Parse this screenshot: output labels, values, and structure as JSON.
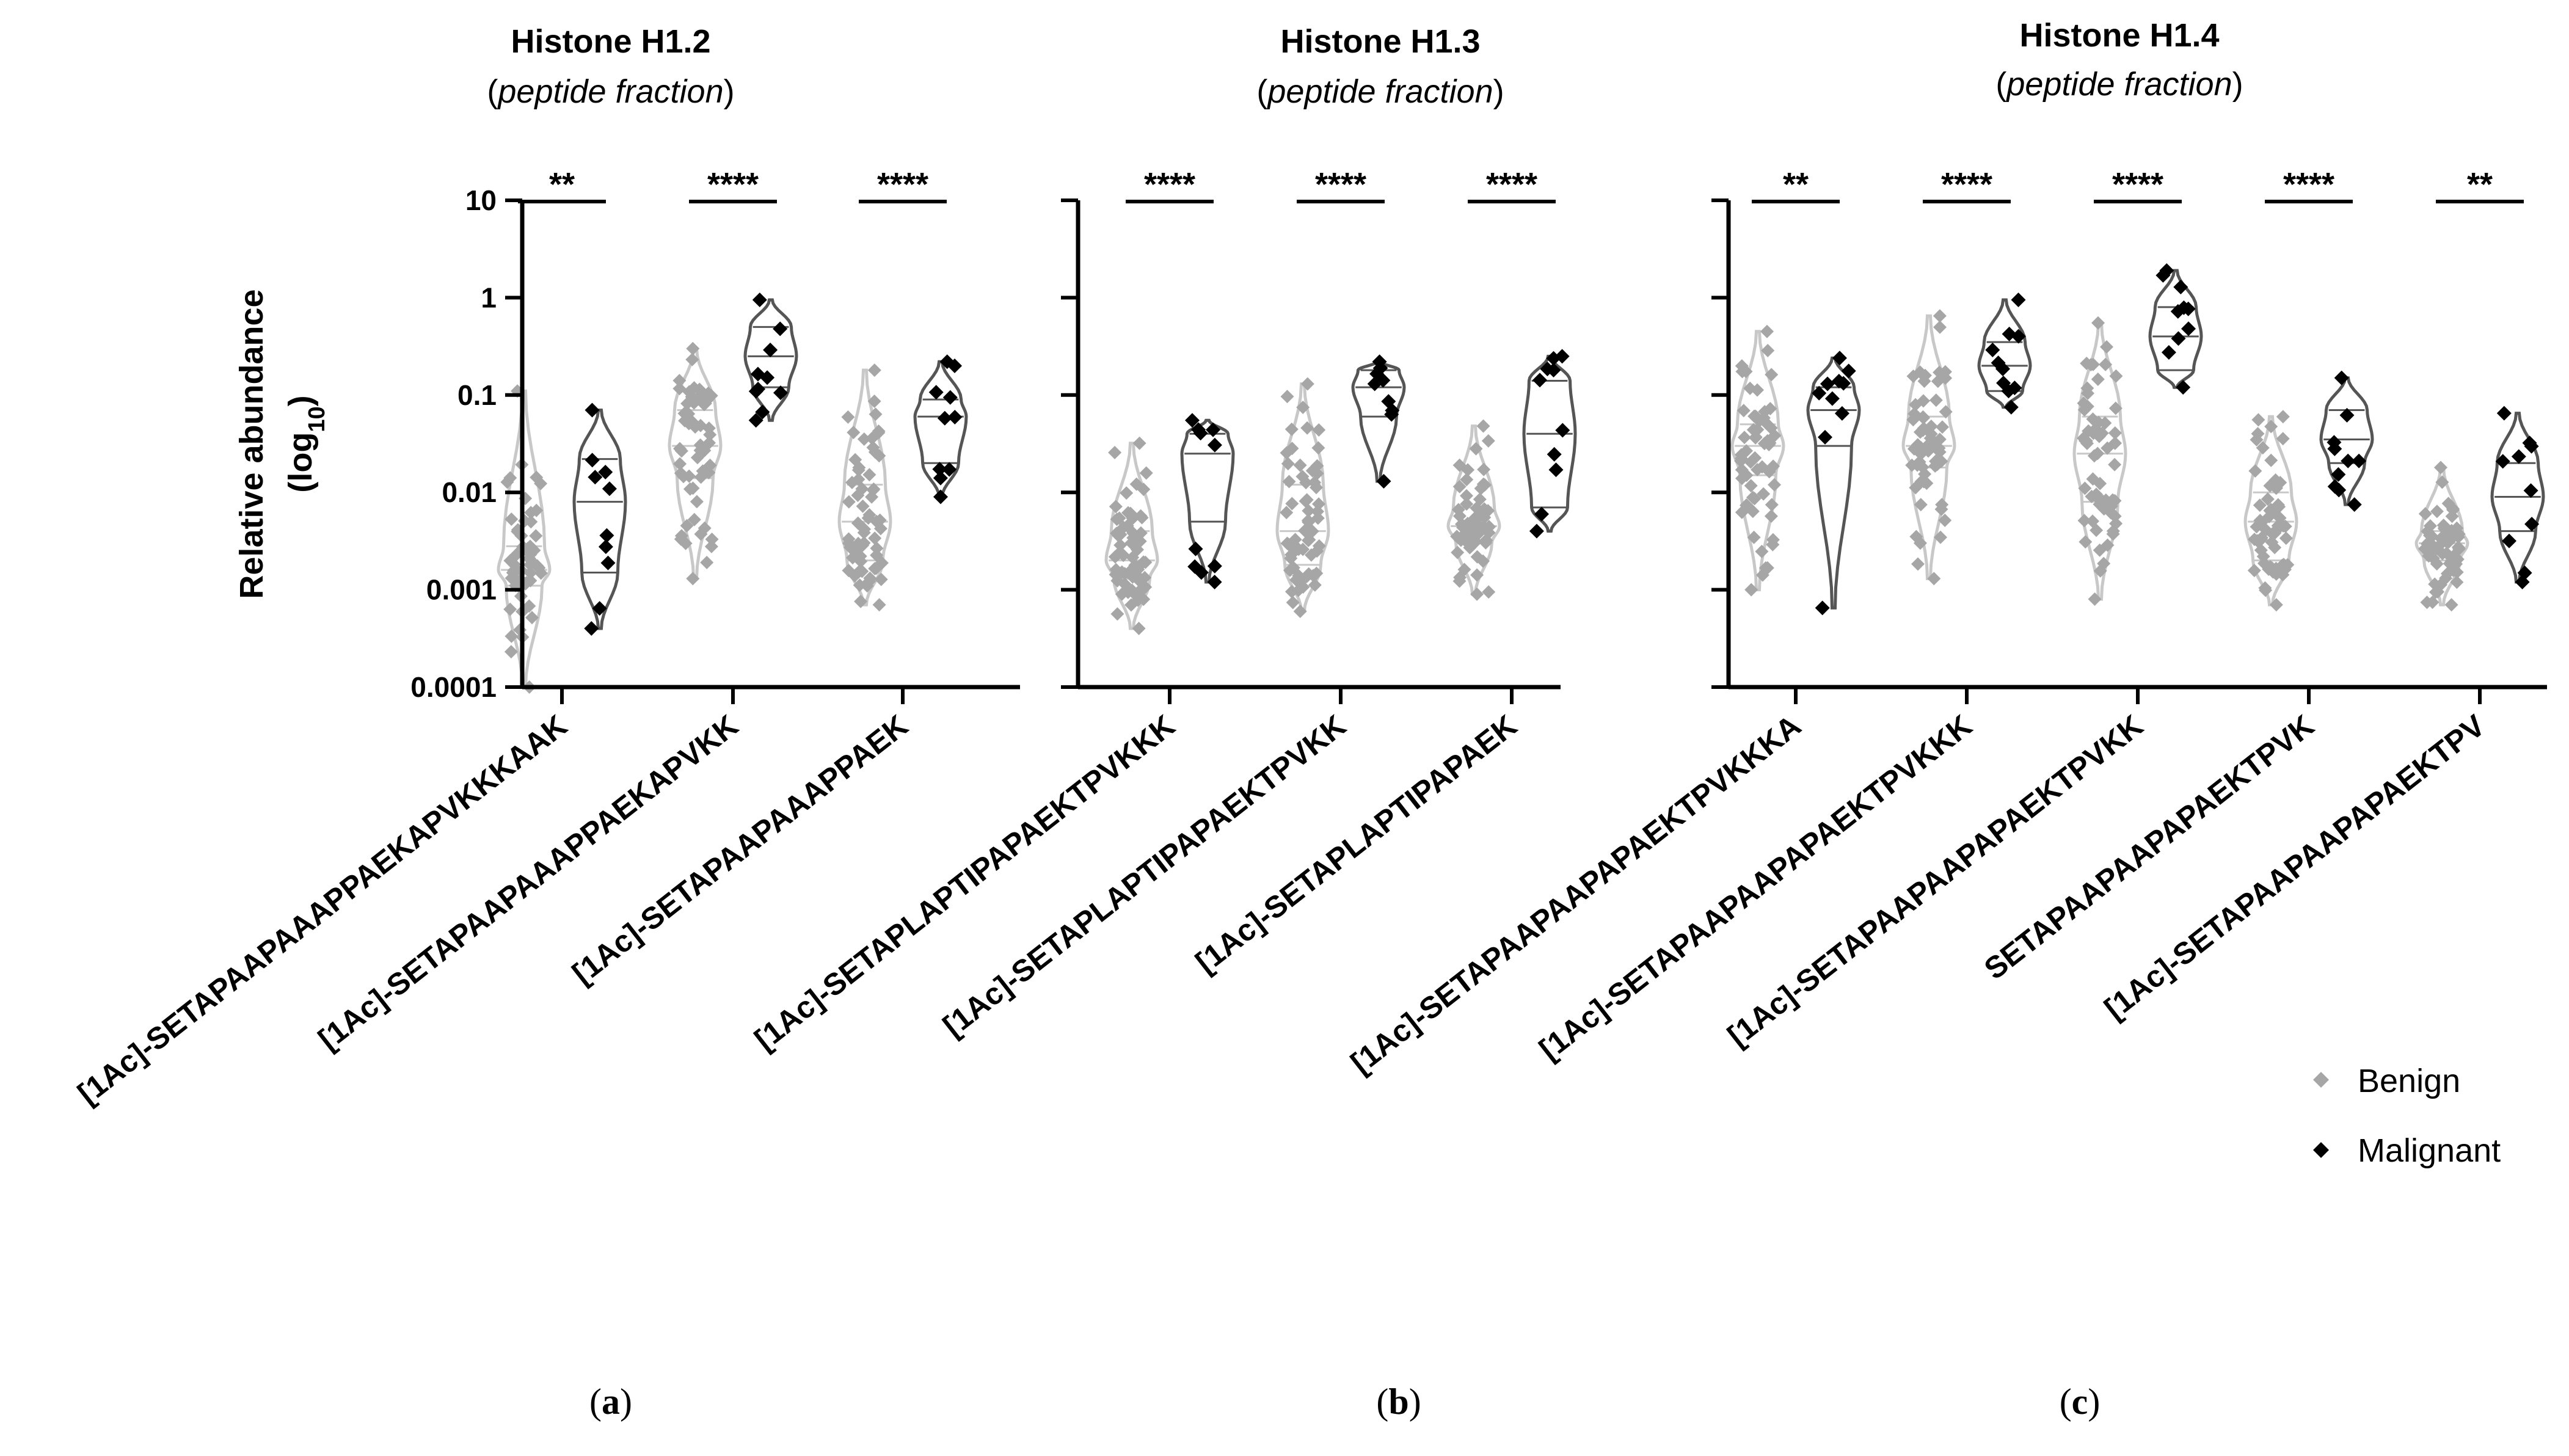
{
  "chart_data": [
    {
      "type": "scatter",
      "panel": "(a)",
      "panel_letter": "a",
      "title": "Histone H1.2",
      "subtitle": "peptide fraction",
      "ylabel": "Relative abundance",
      "ylabel_sub": "log",
      "ylabel_subscript": "10",
      "yscale": "log",
      "ylim": [
        0.0001,
        10
      ],
      "yticks": [
        "0.0001",
        "0.001",
        "0.01",
        "0.1",
        "1",
        "10"
      ],
      "series_names": [
        "Benign",
        "Malignant"
      ],
      "categories": [
        {
          "label": "[1Ac]-SETAPAAPAAAPPAEKAPVKKKAAK",
          "significance": "**",
          "benign": {
            "min": 0.0001,
            "q1": 0.0011,
            "median": 0.0016,
            "q3": 0.0028,
            "max": 0.11
          },
          "malignant": {
            "min": 0.0004,
            "q1": 0.0015,
            "median": 0.008,
            "q3": 0.022,
            "max": 0.07
          }
        },
        {
          "label": "[1Ac]-SETAPAAPAAAPPAEKAPVKK",
          "significance": "****",
          "benign": {
            "min": 0.0013,
            "q1": 0.014,
            "median": 0.03,
            "q3": 0.07,
            "max": 0.3
          },
          "malignant": {
            "min": 0.055,
            "q1": 0.12,
            "median": 0.25,
            "q3": 0.5,
            "max": 0.95
          }
        },
        {
          "label": "[1Ac]-SETAPAAPAAAPPAEK",
          "significance": "****",
          "benign": {
            "min": 0.0007,
            "q1": 0.002,
            "median": 0.005,
            "q3": 0.012,
            "max": 0.18
          },
          "malignant": {
            "min": 0.009,
            "q1": 0.02,
            "median": 0.06,
            "q3": 0.09,
            "max": 0.22
          }
        }
      ]
    },
    {
      "type": "scatter",
      "panel": "(b)",
      "panel_letter": "b",
      "title": "Histone H1.3",
      "subtitle": "peptide fraction",
      "yscale": "log",
      "ylim": [
        0.0001,
        10
      ],
      "series_names": [
        "Benign",
        "Malignant"
      ],
      "categories": [
        {
          "label": "[1Ac]-SETAPLAPTIPAPAEKTPVKKK",
          "significance": "****",
          "benign": {
            "min": 0.0004,
            "q1": 0.0013,
            "median": 0.002,
            "q3": 0.004,
            "max": 0.032
          },
          "malignant": {
            "min": 0.0012,
            "q1": 0.005,
            "median": 0.025,
            "q3": 0.04,
            "max": 0.055
          }
        },
        {
          "label": "[1Ac]-SETAPLAPTIPAPAEKTPVKK",
          "significance": "****",
          "benign": {
            "min": 0.0006,
            "q1": 0.0018,
            "median": 0.004,
            "q3": 0.012,
            "max": 0.13
          },
          "malignant": {
            "min": 0.013,
            "q1": 0.06,
            "median": 0.12,
            "q3": 0.18,
            "max": 0.22
          }
        },
        {
          "label": "[1Ac]-SETAPLAPTIPAPAEK",
          "significance": "****",
          "benign": {
            "min": 0.0009,
            "q1": 0.003,
            "median": 0.0045,
            "q3": 0.007,
            "max": 0.048
          },
          "malignant": {
            "min": 0.004,
            "q1": 0.007,
            "median": 0.04,
            "q3": 0.14,
            "max": 0.25
          }
        }
      ]
    },
    {
      "type": "scatter",
      "panel": "(c)",
      "panel_letter": "c",
      "title": "Histone H1.4",
      "subtitle": "peptide fraction",
      "yscale": "log",
      "ylim": [
        0.0001,
        10
      ],
      "series_names": [
        "Benign",
        "Malignant"
      ],
      "categories": [
        {
          "label": "[1Ac]-SETAPAAPAAPAPAEKTPVKKKA",
          "significance": "**",
          "benign": {
            "min": 0.001,
            "q1": 0.015,
            "median": 0.03,
            "q3": 0.05,
            "max": 0.45
          },
          "malignant": {
            "min": 0.00065,
            "q1": 0.03,
            "median": 0.07,
            "q3": 0.12,
            "max": 0.24
          }
        },
        {
          "label": "[1Ac]-SETAPAAPAAPAPAEKTPVKKK",
          "significance": "****",
          "benign": {
            "min": 0.0013,
            "q1": 0.018,
            "median": 0.03,
            "q3": 0.06,
            "max": 0.65
          },
          "malignant": {
            "min": 0.075,
            "q1": 0.11,
            "median": 0.2,
            "q3": 0.35,
            "max": 0.95
          }
        },
        {
          "label": "[1Ac]-SETAPAAPAAPAPAEKTPVKK",
          "significance": "****",
          "benign": {
            "min": 0.0008,
            "q1": 0.008,
            "median": 0.025,
            "q3": 0.06,
            "max": 0.55
          },
          "malignant": {
            "min": 0.12,
            "q1": 0.18,
            "median": 0.4,
            "q3": 0.8,
            "max": 1.9
          }
        },
        {
          "label": "SETAPAAPAAPAPAEKTPVK",
          "significance": "****",
          "benign": {
            "min": 0.0007,
            "q1": 0.002,
            "median": 0.005,
            "q3": 0.01,
            "max": 0.06
          },
          "malignant": {
            "min": 0.0075,
            "q1": 0.02,
            "median": 0.035,
            "q3": 0.07,
            "max": 0.15
          }
        },
        {
          "label": "[1Ac]-SETAPAAPAAPAPAEKTPV",
          "significance": "**",
          "benign": {
            "min": 0.0007,
            "q1": 0.002,
            "median": 0.003,
            "q3": 0.004,
            "max": 0.018
          },
          "malignant": {
            "min": 0.0012,
            "q1": 0.004,
            "median": 0.009,
            "q3": 0.02,
            "max": 0.065
          }
        }
      ]
    }
  ],
  "legend": {
    "items": [
      {
        "label": "Benign",
        "color": "#a6a6a6"
      },
      {
        "label": "Malignant",
        "color": "#000000"
      }
    ]
  },
  "colors": {
    "benign_points": "#a6a6a6",
    "benign_violin_edge": "#c8c8c8",
    "malignant_points": "#000000",
    "malignant_violin_edge": "#555555"
  }
}
